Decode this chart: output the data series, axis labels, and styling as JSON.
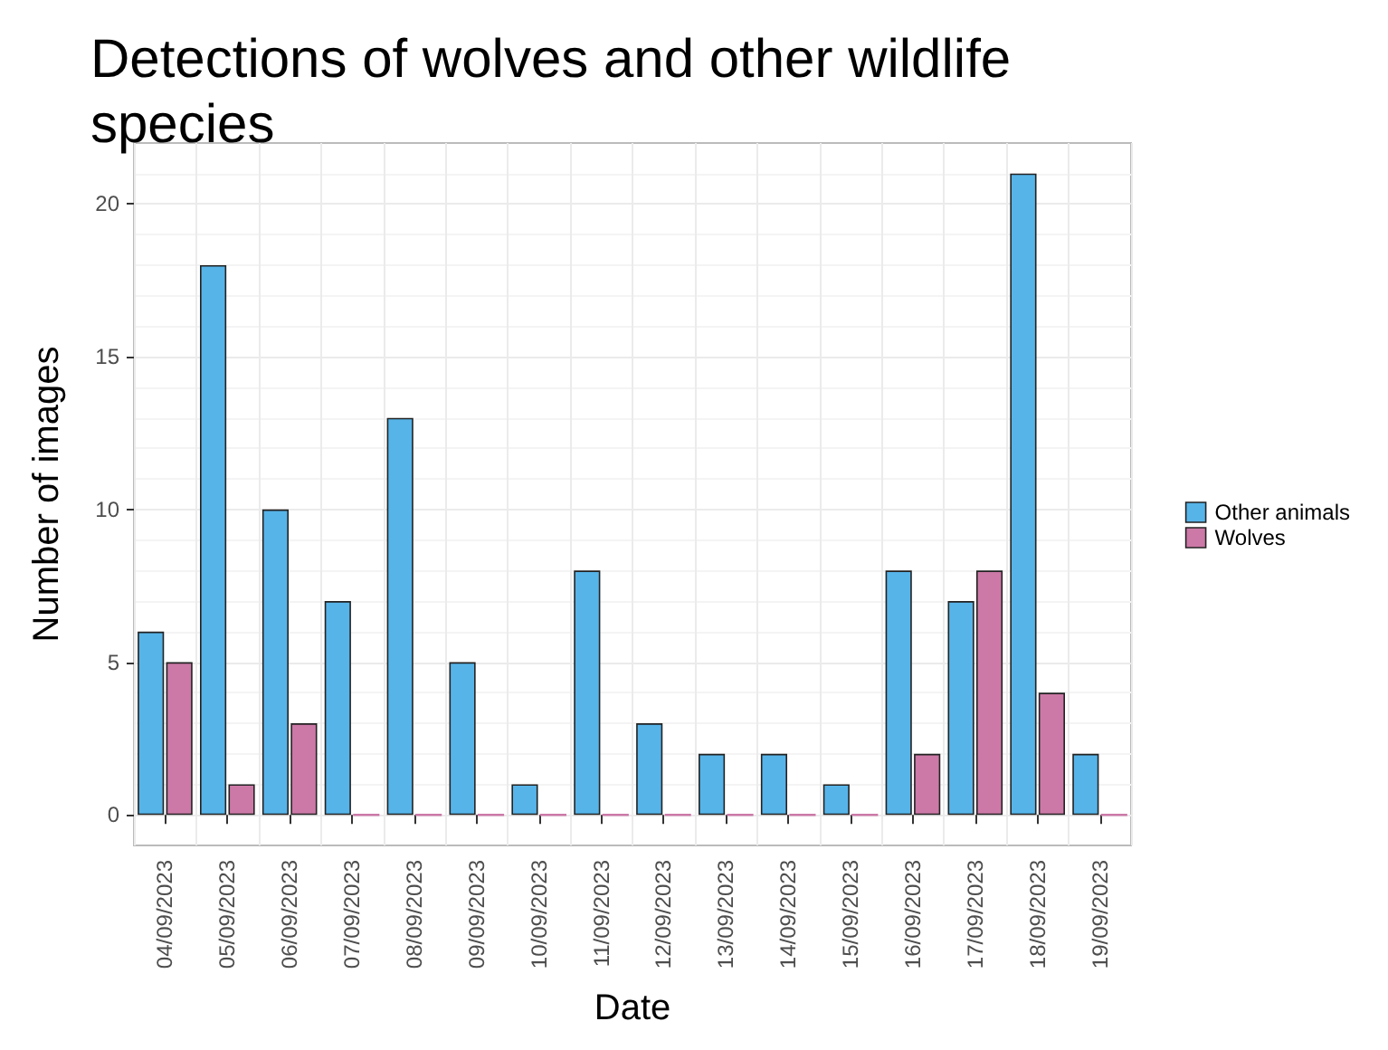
{
  "chart_data": {
    "type": "bar",
    "title": "Detections of wolves and other wildlife species",
    "xlabel": "Date",
    "ylabel": "Number of images",
    "categories": [
      "04/09/2023",
      "05/09/2023",
      "06/09/2023",
      "07/09/2023",
      "08/09/2023",
      "09/09/2023",
      "10/09/2023",
      "11/09/2023",
      "12/09/2023",
      "13/09/2023",
      "14/09/2023",
      "15/09/2023",
      "16/09/2023",
      "17/09/2023",
      "18/09/2023",
      "19/09/2023"
    ],
    "series": [
      {
        "name": "Other animals",
        "color": "#56b4e9",
        "values": [
          6,
          18,
          10,
          7,
          13,
          5,
          1,
          8,
          3,
          2,
          2,
          1,
          8,
          7,
          21,
          2
        ]
      },
      {
        "name": "Wolves",
        "color": "#cc79a7",
        "values": [
          5,
          1,
          3,
          0,
          0,
          0,
          0,
          0,
          0,
          0,
          0,
          0,
          2,
          8,
          4,
          0
        ]
      }
    ],
    "ylim": [
      -1,
      22
    ],
    "yticks": [
      0,
      5,
      10,
      15,
      20
    ],
    "grid": true,
    "legend": "right"
  }
}
